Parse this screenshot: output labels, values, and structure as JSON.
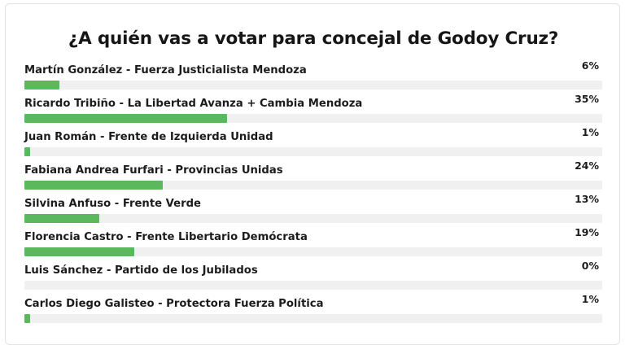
{
  "poll": {
    "title": "¿A quién vas a votar para concejal de Godoy Cruz?",
    "bar_color": "#5cb85c",
    "track_color": "#f0f0f0",
    "options": [
      {
        "label": "Martín González - Fuerza Justicialista Mendoza",
        "percent_text": "6%",
        "percent": 6
      },
      {
        "label": "Ricardo Tribiño - La Libertad Avanza + Cambia Mendoza",
        "percent_text": "35%",
        "percent": 35
      },
      {
        "label": "Juan Román - Frente de Izquierda Unidad",
        "percent_text": "1%",
        "percent": 1
      },
      {
        "label": "Fabiana Andrea Furfari - Provincias Unidas",
        "percent_text": "24%",
        "percent": 24
      },
      {
        "label": "Silvina Anfuso - Frente Verde",
        "percent_text": "13%",
        "percent": 13
      },
      {
        "label": "Florencia Castro - Frente Libertario Demócrata",
        "percent_text": "19%",
        "percent": 19
      },
      {
        "label": "Luis Sánchez - Partido de los Jubilados",
        "percent_text": "0%",
        "percent": 0
      },
      {
        "label": "Carlos Diego Galisteo - Protectora Fuerza Política",
        "percent_text": "1%",
        "percent": 1
      }
    ]
  }
}
